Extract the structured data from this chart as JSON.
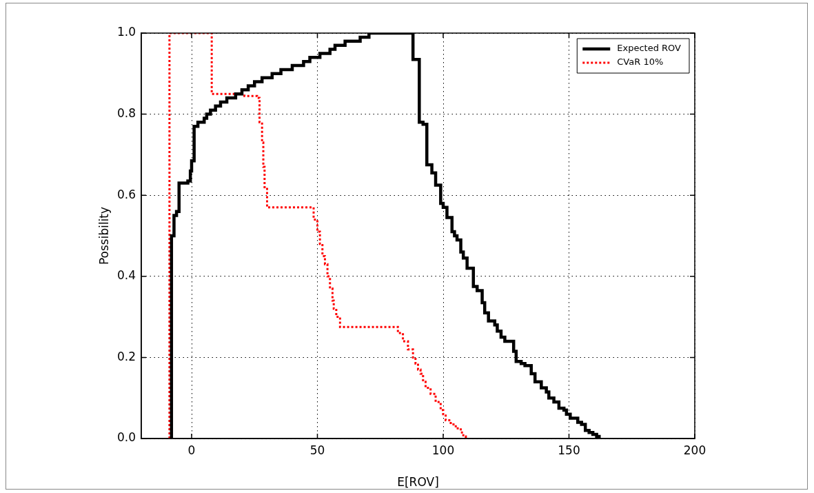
{
  "chart_data": {
    "type": "step",
    "xlabel": "E[ROV]",
    "ylabel": "Possibility",
    "xlim": [
      -20,
      200
    ],
    "xticks": [
      0,
      50,
      100,
      150,
      200
    ],
    "ylim": [
      0,
      1
    ],
    "yticks": [
      {
        "value": 0,
        "label": "0.0"
      },
      0.2,
      0.4,
      0.6,
      0.8,
      {
        "value": 1,
        "label": "1.0"
      }
    ],
    "grid": true,
    "legend": "top right",
    "series": [
      {
        "name": "Expected ROV",
        "color": "#000000",
        "line_style": "solid",
        "x": [
          -8,
          -8,
          -7,
          -6,
          -5,
          -1.5,
          -0.5,
          0,
          1,
          2.5,
          5,
          6,
          7.5,
          9.5,
          11.5,
          14,
          17.5,
          20,
          22.5,
          25,
          28,
          32,
          35.5,
          40,
          44.5,
          47,
          51,
          55,
          57,
          61,
          67,
          70.5,
          88,
          90.5,
          92,
          93.5,
          95.5,
          97,
          99,
          100,
          101.5,
          103.5,
          104.5,
          105.5,
          107,
          108,
          109.5,
          112,
          113.5,
          115.5,
          116.5,
          118,
          120.5,
          121.5,
          123,
          124.5,
          128,
          129,
          131,
          132.5,
          135,
          136.5,
          139,
          141,
          142,
          144,
          146,
          148,
          149,
          150.5,
          153.5,
          155,
          156.5,
          158,
          159.5,
          161,
          162
        ],
        "values": [
          0,
          0.5,
          0.55,
          0.56,
          0.63,
          0.635,
          0.66,
          0.685,
          0.77,
          0.78,
          0.79,
          0.8,
          0.81,
          0.82,
          0.83,
          0.84,
          0.85,
          0.86,
          0.87,
          0.88,
          0.89,
          0.9,
          0.91,
          0.92,
          0.93,
          0.94,
          0.95,
          0.96,
          0.97,
          0.98,
          0.99,
          1,
          0.935,
          0.78,
          0.775,
          0.675,
          0.655,
          0.625,
          0.58,
          0.57,
          0.545,
          0.51,
          0.5,
          0.49,
          0.46,
          0.445,
          0.42,
          0.375,
          0.365,
          0.335,
          0.31,
          0.29,
          0.28,
          0.265,
          0.25,
          0.24,
          0.215,
          0.19,
          0.185,
          0.18,
          0.16,
          0.14,
          0.125,
          0.115,
          0.1,
          0.09,
          0.075,
          0.07,
          0.06,
          0.05,
          0.04,
          0.035,
          0.02,
          0.015,
          0.01,
          0.005,
          0
        ]
      },
      {
        "name": "CVaR 10%",
        "color": "#ff0000",
        "line_style": "dotted",
        "x": [
          -8.8,
          -8.8,
          8,
          21,
          26,
          27,
          28,
          28.5,
          29,
          30,
          48.5,
          50,
          51,
          52,
          53,
          54,
          55,
          56,
          56.5,
          57.5,
          59,
          82,
          84,
          86,
          88,
          89,
          90,
          91,
          92,
          93,
          95,
          97,
          99,
          100,
          101,
          103,
          105,
          107,
          108,
          109
        ],
        "values": [
          0,
          1,
          0.85,
          0.845,
          0.84,
          0.78,
          0.73,
          0.67,
          0.62,
          0.57,
          0.54,
          0.51,
          0.48,
          0.45,
          0.43,
          0.4,
          0.37,
          0.34,
          0.32,
          0.3,
          0.275,
          0.26,
          0.24,
          0.22,
          0.2,
          0.185,
          0.17,
          0.16,
          0.14,
          0.125,
          0.11,
          0.09,
          0.07,
          0.06,
          0.045,
          0.035,
          0.025,
          0.015,
          0.005,
          0
        ]
      }
    ]
  }
}
